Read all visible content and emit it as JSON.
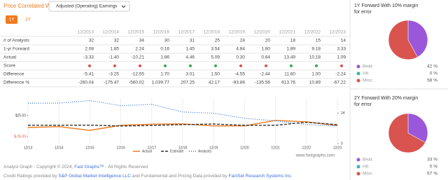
{
  "header": {
    "title": "Price Correlated With",
    "dropdown": "Adjusted (Operating) Earnings",
    "tabs": [
      "1Y",
      "2Y"
    ]
  },
  "table": {
    "columns": [
      "12/2013",
      "12/2014",
      "12/2015",
      "12/2016",
      "12/2017",
      "12/2018",
      "12/2019",
      "12/2020",
      "12/2021",
      "12/2022",
      "12/2023"
    ],
    "rows": [
      {
        "label": "# of Analysts",
        "cells": [
          "32",
          "32",
          "34",
          "30",
          "31",
          "25",
          "24",
          "20",
          "18",
          "15",
          "14"
        ]
      },
      {
        "label": "1-yr Forward",
        "cells": [
          "2.08",
          "1.85",
          "2.24",
          "0.16",
          "1.45",
          "3.54",
          "4.84",
          "1.80",
          "1.89",
          "9.18",
          "3.33"
        ]
      },
      {
        "label": "Actual",
        "cells": [
          "-3.33",
          "-1.40",
          "-10.21",
          "1.86",
          "4.46",
          "5.09",
          "0.30",
          "0.64",
          "13.49",
          "10.18",
          "1.09"
        ]
      },
      {
        "label": "Score",
        "cells": []
      },
      {
        "label": "Difference",
        "cells": [
          "-5.41",
          "-3.25",
          "-12.55",
          "1.70",
          "3.01",
          "1.50",
          "-4.55",
          "-2.44",
          "11.60",
          "1.00",
          "-2.24"
        ]
      },
      {
        "label": "Difference %",
        "cells": [
          "-260.04",
          "-175.47",
          "-560.02",
          "1,039.77",
          "207.25",
          "42.17",
          "-93.86",
          "-135.56",
          "613.76",
          "10.89",
          "-67.22"
        ]
      }
    ]
  },
  "chart_data": [
    {
      "type": "line",
      "categories": [
        "12/13",
        "12/14",
        "12/15",
        "12/16",
        "12/17",
        "12/18",
        "12/19",
        "12/20",
        "12/21",
        "12/22",
        "12/23"
      ],
      "ylim": [
        -25,
        25
      ],
      "yticks": [
        {
          "value": 25,
          "label": "$25.00"
        },
        {
          "value": -25,
          "label": "$-25.00"
        }
      ],
      "y2lim": [
        0,
        36
      ],
      "y2ticks": [
        24,
        0
      ],
      "series": [
        {
          "name": "Actual",
          "color": "#f07b1d",
          "values": [
            -3.33,
            -1.4,
            -10.21,
            1.86,
            4.46,
            5.09,
            0.3,
            0.64,
            13.49,
            10.18,
            1.09
          ]
        },
        {
          "name": "Estimate",
          "color": "#333333",
          "values": [
            2.08,
            1.85,
            2.24,
            0.16,
            1.45,
            3.54,
            4.84,
            1.8,
            1.89,
            9.18,
            3.33
          ]
        },
        {
          "name": "Analysts",
          "color": "#3a6fd8",
          "axis": "y2",
          "values": [
            32,
            32,
            34,
            30,
            31,
            25,
            24,
            20,
            18,
            15,
            14
          ]
        }
      ],
      "watermark": "www.fastgraphs.com"
    },
    {
      "type": "pie",
      "title": "1Y Forward With 10% margin for error",
      "categories": [
        "Beat:",
        "Hit:",
        "Miss:"
      ],
      "colors": [
        "#9b57d9",
        "#3bb5a6",
        "#d9534f"
      ],
      "values": [
        42,
        0,
        58
      ],
      "value_labels": [
        "42 %",
        "0 %",
        "58 %"
      ]
    },
    {
      "type": "pie",
      "title": "2Y Forward With 20% margin for error",
      "categories": [
        "Beat:",
        "Hit:",
        "Miss:"
      ],
      "colors": [
        "#9b57d9",
        "#3bb5a6",
        "#d9534f"
      ],
      "values": [
        33,
        0,
        67
      ],
      "value_labels": [
        "33 %",
        "0 %",
        "67 %"
      ]
    }
  ],
  "footer": {
    "line1": [
      "Analyst Graph - Copyright © 2024, ",
      "Fast Graphs™",
      " - All Rights Reserved"
    ],
    "line2": [
      "Credit Ratings provided by ",
      "S&P Global Market Intelligence LLC",
      " and Fundamental and Pricing Data provided by ",
      "FactSet Research Systems Inc."
    ]
  }
}
